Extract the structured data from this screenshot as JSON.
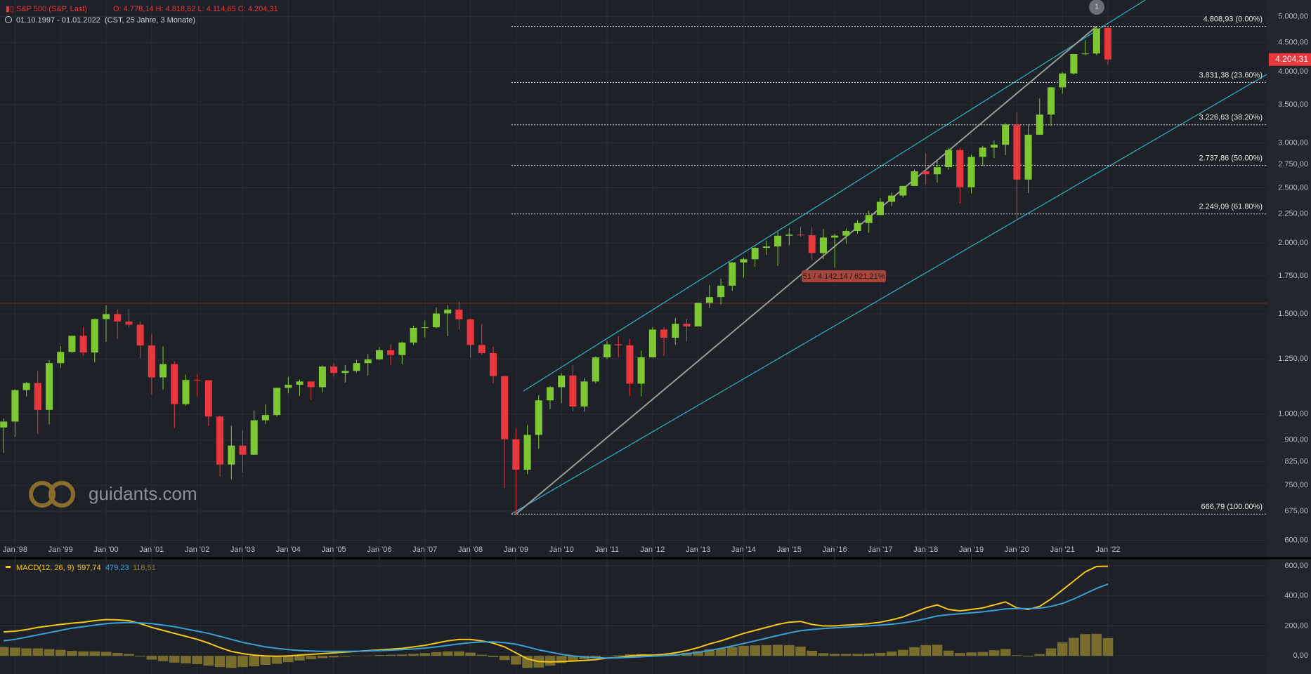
{
  "chart_data": [
    {
      "type": "candlestick",
      "title": "S&P 500 (S&P, Last)",
      "ohlc_text": "O: 4.778,14   H: 4.818,62   L: 4.114,65   C: 4.204,31",
      "subtitle": "01.10.1997 - 01.01.2022",
      "period": "(CST, 25 Jahre, 3 Monate)",
      "categories": [
        null,
        "Jan '98",
        null,
        null,
        null,
        "Jan '99",
        null,
        null,
        null,
        "Jan '00",
        null,
        null,
        null,
        "Jan '01",
        null,
        null,
        null,
        "Jan '02",
        null,
        null,
        null,
        "Jan '03",
        null,
        null,
        null,
        "Jan '04",
        null,
        null,
        null,
        "Jan '05",
        null,
        null,
        null,
        "Jan '06",
        null,
        null,
        null,
        "Jan '07",
        null,
        null,
        null,
        "Jan '08",
        null,
        null,
        null,
        "Jan '09",
        null,
        null,
        null,
        "Jan '10",
        null,
        null,
        null,
        "Jan '11",
        null,
        null,
        null,
        "Jan '12",
        null,
        null,
        null,
        "Jan '13",
        null,
        null,
        null,
        "Jan '14",
        null,
        null,
        null,
        "Jan '15",
        null,
        null,
        null,
        "Jan '16",
        null,
        null,
        null,
        "Jan '17",
        null,
        null,
        null,
        "Jan '18",
        null,
        null,
        null,
        "Jan '19",
        null,
        null,
        null,
        "Jan '20",
        null,
        null,
        null,
        "Jan '21",
        null,
        null,
        null,
        "Jan '22"
      ],
      "open": [
        947,
        970,
        1102,
        1134,
        1017,
        1229,
        1286,
        1373,
        1283,
        1469,
        1499,
        1455,
        1436,
        1320,
        1160,
        1224,
        1041,
        1148,
        1147,
        990,
        815,
        880,
        848,
        975,
        996,
        1112,
        1126,
        1141,
        1115,
        1212,
        1181,
        1191,
        1229,
        1248,
        1295,
        1270,
        1336,
        1418,
        1421,
        1503,
        1527,
        1468,
        1323,
        1280,
        1166,
        903,
        798,
        919,
        1057,
        1115,
        1169,
        1031,
        1141,
        1258,
        1326,
        1321,
        1131,
        1258,
        1408,
        1362,
        1441,
        1426,
        1569,
        1606,
        1682,
        1848,
        1872,
        1960,
        1972,
        2059,
        2068,
        2063,
        1920,
        2044,
        2060,
        2099,
        2168,
        2239,
        2363,
        2423,
        2519,
        2674,
        2641,
        2718,
        2914,
        2507,
        2834,
        2942,
        2977,
        3231,
        2585,
        3100,
        3363,
        3756,
        3973,
        4298,
        4308,
        4778.14
      ],
      "high": [
        983,
        1105,
        1138,
        1190,
        1244,
        1316,
        1372,
        1421,
        1473,
        1553,
        1527,
        1530,
        1454,
        1383,
        1316,
        1239,
        1173,
        1176,
        1147,
        994,
        954,
        935,
        1015,
        1040,
        1112,
        1163,
        1150,
        1141,
        1217,
        1229,
        1219,
        1246,
        1275,
        1311,
        1326,
        1340,
        1431,
        1461,
        1540,
        1555,
        1576,
        1471,
        1440,
        1313,
        1167,
        944,
        956,
        1080,
        1120,
        1180,
        1220,
        1157,
        1263,
        1344,
        1371,
        1356,
        1293,
        1422,
        1422,
        1475,
        1470,
        1570,
        1687,
        1729,
        1850,
        1884,
        1968,
        2019,
        2093,
        2120,
        2135,
        2133,
        2116,
        2075,
        2121,
        2194,
        2278,
        2401,
        2454,
        2519,
        2695,
        2873,
        2791,
        2940,
        2941,
        2860,
        2964,
        3028,
        3248,
        3394,
        3233,
        3588,
        3760,
        3994,
        4300,
        4546,
        4808,
        4818.62
      ],
      "low": [
        855,
        912,
        1074,
        923,
        959,
        1205,
        1282,
        1268,
        1233,
        1339,
        1356,
        1419,
        1254,
        1082,
        1103,
        945,
        1034,
        1074,
        952,
        776,
        768,
        789,
        847,
        960,
        990,
        1087,
        1076,
        1060,
        1090,
        1163,
        1136,
        1183,
        1168,
        1245,
        1219,
        1224,
        1323,
        1364,
        1416,
        1370,
        1406,
        1257,
        1272,
        1133,
        741,
        667,
        784,
        869,
        1020,
        1045,
        1011,
        1010,
        1132,
        1250,
        1259,
        1075,
        1074,
        1258,
        1267,
        1325,
        1343,
        1426,
        1536,
        1560,
        1647,
        1738,
        1814,
        1904,
        1821,
        1981,
        2049,
        1867,
        1872,
        1810,
        1992,
        2074,
        2084,
        2245,
        2322,
        2405,
        2520,
        2533,
        2553,
        2691,
        2347,
        2444,
        2729,
        2822,
        2855,
        2192,
        2447,
        3101,
        3209,
        3662,
        3955,
        4278,
        4279,
        4114.65
      ],
      "close": [
        970,
        1102,
        1134,
        1017,
        1229,
        1286,
        1373,
        1283,
        1469,
        1499,
        1455,
        1436,
        1320,
        1160,
        1224,
        1041,
        1148,
        1147,
        990,
        815,
        880,
        848,
        975,
        996,
        1112,
        1126,
        1141,
        1115,
        1212,
        1181,
        1191,
        1229,
        1248,
        1295,
        1270,
        1336,
        1418,
        1421,
        1503,
        1527,
        1468,
        1323,
        1280,
        1166,
        903,
        798,
        919,
        1057,
        1115,
        1169,
        1031,
        1141,
        1258,
        1326,
        1321,
        1131,
        1258,
        1408,
        1362,
        1441,
        1426,
        1569,
        1606,
        1682,
        1848,
        1872,
        1960,
        1972,
        2059,
        2068,
        2063,
        1920,
        2044,
        2060,
        2099,
        2168,
        2239,
        2363,
        2423,
        2519,
        2674,
        2641,
        2718,
        2914,
        2507,
        2834,
        2942,
        2977,
        3231,
        2585,
        3100,
        3363,
        3756,
        3973,
        4298,
        4308,
        4766,
        4204.31
      ],
      "up_color": "#7dc832",
      "down_color": "#e8383d",
      "log_scale": true,
      "grid": true,
      "ylim": [
        561,
        5350
      ],
      "yticks": [
        {
          "value": 600,
          "label": "600,00"
        },
        {
          "value": 675,
          "label": "675,00"
        },
        {
          "value": 750,
          "label": "750,00"
        },
        {
          "value": 825,
          "label": "825,00"
        },
        {
          "value": 900,
          "label": "900,00"
        },
        {
          "value": 1000,
          "label": "1.000,00"
        },
        {
          "value": 1250,
          "label": "1.250,00"
        },
        {
          "value": 1500,
          "label": "1.500,00"
        },
        {
          "value": 1750,
          "label": "1.750,00"
        },
        {
          "value": 2000,
          "label": "2.000,00"
        },
        {
          "value": 2250,
          "label": "2.250,00"
        },
        {
          "value": 2500,
          "label": "2.500,00"
        },
        {
          "value": 2750,
          "label": "2.750,00"
        },
        {
          "value": 3000,
          "label": "3.000,00"
        },
        {
          "value": 3500,
          "label": "3.500,00"
        },
        {
          "value": 4000,
          "label": "4.000,00"
        },
        {
          "value": 4500,
          "label": "4.500,00"
        },
        {
          "value": 5000,
          "label": "5.000,00"
        }
      ],
      "fib_levels": [
        {
          "value": 4808.93,
          "label": "4.808,93 (0.00%)"
        },
        {
          "value": 3831.38,
          "label": "3.831,38 (23.60%)"
        },
        {
          "value": 3226.63,
          "label": "3.226,63 (38.20%)"
        },
        {
          "value": 2737.86,
          "label": "2.737,86 (50.00%)"
        },
        {
          "value": 2249.09,
          "label": "2.249,09 (61.80%)"
        },
        {
          "value": 666.79,
          "label": "666,79 (100.00%)"
        }
      ],
      "last_price": {
        "value": 4204.31,
        "label": "4.204,31"
      },
      "annotation": "51 / 4.142,14 / 621,21%",
      "marker": "1",
      "watermark": "guidants.com"
    },
    {
      "type": "macd",
      "title": "MACD(12, 26, 9)",
      "series": [
        {
          "kind": "line",
          "color": "#f5c518",
          "last_label": "597,74",
          "values": [
            160,
            165,
            175,
            190,
            200,
            210,
            218,
            225,
            235,
            242,
            240,
            235,
            215,
            190,
            170,
            150,
            130,
            110,
            85,
            55,
            30,
            15,
            5,
            0,
            -3,
            0,
            5,
            10,
            15,
            20,
            25,
            30,
            35,
            40,
            45,
            50,
            60,
            70,
            85,
            100,
            110,
            110,
            100,
            85,
            60,
            20,
            -20,
            -38,
            -40,
            -38,
            -35,
            -30,
            -25,
            -15,
            -10,
            0,
            5,
            5,
            10,
            20,
            35,
            55,
            80,
            100,
            125,
            150,
            170,
            190,
            210,
            225,
            230,
            210,
            200,
            200,
            205,
            210,
            215,
            225,
            240,
            260,
            290,
            320,
            340,
            310,
            300,
            310,
            320,
            340,
            360,
            320,
            310,
            330,
            380,
            440,
            500,
            560,
            597,
            597.74
          ]
        },
        {
          "kind": "line",
          "color": "#3a9fd6",
          "last_label": "479,23",
          "values": [
            100,
            110,
            125,
            140,
            155,
            170,
            185,
            195,
            205,
            215,
            220,
            222,
            220,
            215,
            205,
            195,
            180,
            165,
            150,
            130,
            110,
            90,
            75,
            60,
            50,
            42,
            36,
            32,
            30,
            30,
            30,
            31,
            33,
            35,
            38,
            41,
            46,
            52,
            60,
            70,
            80,
            88,
            93,
            93,
            88,
            78,
            60,
            40,
            25,
            10,
            0,
            -8,
            -12,
            -14,
            -13,
            -10,
            -6,
            -2,
            2,
            7,
            14,
            24,
            36,
            50,
            66,
            83,
            100,
            118,
            136,
            153,
            168,
            176,
            182,
            187,
            192,
            196,
            200,
            205,
            211,
            220,
            232,
            248,
            266,
            275,
            281,
            287,
            294,
            303,
            314,
            316,
            315,
            318,
            330,
            350,
            380,
            415,
            450,
            479.23
          ]
        },
        {
          "kind": "histogram",
          "color": "#8a7a2e",
          "last_label": "118,51",
          "values": [
            60,
            55,
            50,
            50,
            45,
            40,
            33,
            30,
            30,
            27,
            20,
            13,
            -5,
            -25,
            -35,
            -45,
            -50,
            -55,
            -65,
            -75,
            -80,
            -75,
            -70,
            -60,
            -53,
            -42,
            -31,
            -22,
            -15,
            -10,
            -5,
            -1,
            2,
            5,
            7,
            9,
            14,
            18,
            25,
            30,
            30,
            22,
            7,
            -8,
            -28,
            -58,
            -80,
            -78,
            -65,
            -48,
            -35,
            -22,
            -13,
            -1,
            3,
            10,
            11,
            7,
            8,
            13,
            21,
            31,
            44,
            50,
            59,
            67,
            70,
            72,
            74,
            72,
            62,
            34,
            18,
            13,
            13,
            14,
            15,
            20,
            29,
            40,
            58,
            72,
            74,
            35,
            19,
            23,
            26,
            37,
            46,
            4,
            -5,
            12,
            50,
            90,
            120,
            145,
            147,
            118.51
          ]
        }
      ],
      "ylim": [
        -121,
        638
      ],
      "yticks": [
        {
          "value": 0,
          "label": "0,00"
        },
        {
          "value": 200,
          "label": "200,00"
        },
        {
          "value": 400,
          "label": "400,00"
        },
        {
          "value": 600,
          "label": "600,00"
        }
      ]
    }
  ]
}
